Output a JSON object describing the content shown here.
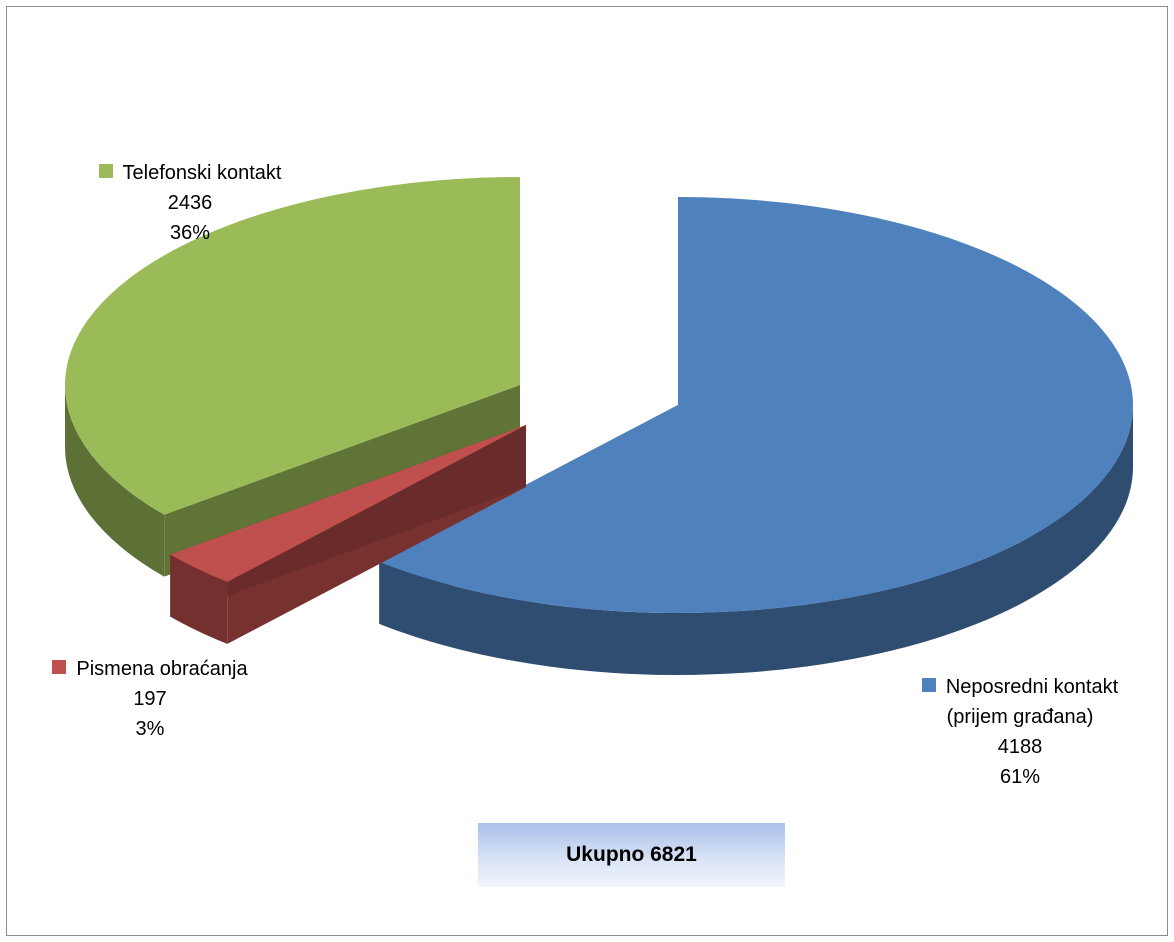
{
  "chart_data": {
    "type": "pie",
    "title": "",
    "three_d": true,
    "exploded": true,
    "slices": [
      {
        "label": "Neposredni kontakt (prijem građana)",
        "label_lines": [
          "Neposredni kontakt",
          "(prijem građana)"
        ],
        "value": 4188,
        "value_text": "4188",
        "percent_text": "61%",
        "color": "#4f81bd"
      },
      {
        "label": "Pismena obraćanja",
        "label_lines": [
          "Pismena obraćanja"
        ],
        "value": 197,
        "value_text": "197",
        "percent_text": "3%",
        "color": "#c0504d"
      },
      {
        "label": "Telefonski kontakt",
        "label_lines": [
          "Telefonski kontakt"
        ],
        "value": 2436,
        "value_text": "2436",
        "percent_text": "36%",
        "color": "#9bbb59"
      }
    ],
    "total_label": "Ukupno  6821"
  }
}
